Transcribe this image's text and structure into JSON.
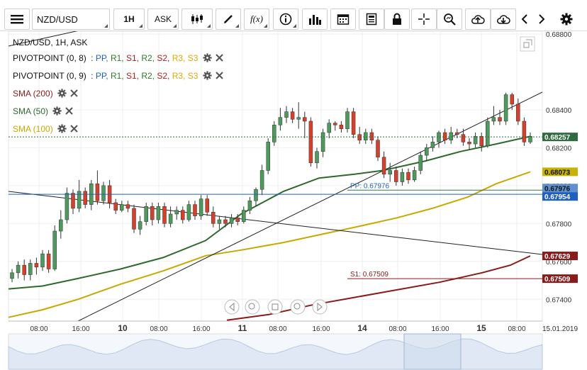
{
  "toolbar": {
    "symbol": "NZD/USD",
    "timeframe": "1H",
    "price_side": "ASK"
  },
  "header": {
    "title": "NZD/USD, 1H, ASK"
  },
  "legend": [
    {
      "label": "PIVOTPOINT (0, 8)",
      "levels": [
        "PP",
        "R1",
        "S1",
        "R2",
        "S2",
        "R3",
        "S3"
      ]
    },
    {
      "label": "PIVOTPOINT (0, 9)",
      "levels": [
        "PP",
        "R1",
        "S1",
        "R2",
        "S2",
        "R3",
        "S3"
      ]
    },
    {
      "label": "SMA (200)",
      "color": "#8b1a1a"
    },
    {
      "label": "SMA (50)",
      "color": "#2d6a2d"
    },
    {
      "label": "SMA (100)",
      "color": "#c9a800"
    }
  ],
  "level_colors": {
    "PP": "#1f5fbf",
    "R1": "#2d7a2d",
    "S1": "#b71c1c",
    "R2": "#2d7a2d",
    "S2": "#b71c1c",
    "R3": "#e0a800",
    "S3": "#e0a800"
  },
  "chart_data": {
    "type": "candlestick",
    "y_ticks": [
      0.688,
      0.684,
      0.682,
      0.68,
      0.678,
      0.676,
      0.674
    ],
    "y_tick_labels": [
      "0.68800",
      "0.68400",
      "0.68200",
      "0.68000",
      "0.67800",
      "0.67600",
      "0.67400"
    ],
    "ylim": [
      0.67285,
      0.68815
    ],
    "x_labels": [
      "08:00",
      "16:00",
      "10",
      "08:00",
      "16:00",
      "11",
      "08:00",
      "16:00",
      "14",
      "08:00",
      "16:00",
      "15",
      "08:00",
      "15.01.2019"
    ],
    "price_tags": [
      {
        "value": "0.68257",
        "price": 0.68257,
        "color": "#2e6b3e"
      },
      {
        "value": "0.68073",
        "price": 0.68073,
        "color": "#c9b300"
      },
      {
        "value": "0.67976",
        "price": 0.67976,
        "color": "#5e8fcf"
      },
      {
        "value": "0.67954",
        "price": 0.67954,
        "color": "#1f5fbf"
      },
      {
        "value": "0.67629",
        "price": 0.67629,
        "color": "#8b1a1a"
      },
      {
        "value": "0.67509",
        "price": 0.67509,
        "color": "#8b1a1a"
      }
    ],
    "level_labels": [
      {
        "text": "PP: 0.67976",
        "price": 0.67976,
        "color": "#1f5fbf"
      },
      {
        "text": "S1: 0.67509",
        "price": 0.67509,
        "color": "#8b1a1a"
      }
    ],
    "candles": [
      [
        0.6751,
        0.6754,
        0.6749,
        0.6756
      ],
      [
        0.6754,
        0.6758,
        0.6751,
        0.676
      ],
      [
        0.6758,
        0.6753,
        0.675,
        0.6761
      ],
      [
        0.6753,
        0.6759,
        0.675,
        0.6761
      ],
      [
        0.6759,
        0.6757,
        0.6753,
        0.6762
      ],
      [
        0.6757,
        0.6764,
        0.6755,
        0.6766
      ],
      [
        0.6764,
        0.6756,
        0.6754,
        0.6766
      ],
      [
        0.6756,
        0.6776,
        0.6755,
        0.6779
      ],
      [
        0.6776,
        0.6782,
        0.6772,
        0.6787
      ],
      [
        0.6782,
        0.6796,
        0.678,
        0.6799
      ],
      [
        0.6796,
        0.6788,
        0.6785,
        0.6798
      ],
      [
        0.6788,
        0.6797,
        0.6786,
        0.6803
      ],
      [
        0.6797,
        0.679,
        0.6788,
        0.6799
      ],
      [
        0.679,
        0.6801,
        0.6787,
        0.6803
      ],
      [
        0.6801,
        0.6792,
        0.679,
        0.6808
      ],
      [
        0.6792,
        0.68,
        0.679,
        0.6802
      ],
      [
        0.68,
        0.6791,
        0.6788,
        0.6803
      ],
      [
        0.6791,
        0.6787,
        0.6785,
        0.6793
      ],
      [
        0.6787,
        0.679,
        0.6786,
        0.6792
      ],
      [
        0.679,
        0.6788,
        0.6786,
        0.6792
      ],
      [
        0.6788,
        0.6777,
        0.6775,
        0.679
      ],
      [
        0.6777,
        0.6781,
        0.6774,
        0.6784
      ],
      [
        0.6781,
        0.6789,
        0.6779,
        0.6791
      ],
      [
        0.6789,
        0.6782,
        0.6779,
        0.6791
      ],
      [
        0.6782,
        0.6789,
        0.678,
        0.6791
      ],
      [
        0.6789,
        0.678,
        0.6778,
        0.6791
      ],
      [
        0.678,
        0.6785,
        0.6778,
        0.6789
      ],
      [
        0.6785,
        0.6787,
        0.6782,
        0.6789
      ],
      [
        0.6787,
        0.6782,
        0.678,
        0.6789
      ],
      [
        0.6782,
        0.679,
        0.6781,
        0.6792
      ],
      [
        0.679,
        0.6784,
        0.6782,
        0.6792
      ],
      [
        0.6784,
        0.6793,
        0.6782,
        0.6795
      ],
      [
        0.6793,
        0.6786,
        0.6784,
        0.6795
      ],
      [
        0.6786,
        0.678,
        0.6778,
        0.6789
      ],
      [
        0.678,
        0.6782,
        0.6777,
        0.6784
      ],
      [
        0.6782,
        0.678,
        0.6778,
        0.6784
      ],
      [
        0.678,
        0.6783,
        0.6778,
        0.6785
      ],
      [
        0.6783,
        0.6781,
        0.6779,
        0.6785
      ],
      [
        0.6781,
        0.6787,
        0.678,
        0.6789
      ],
      [
        0.6787,
        0.6792,
        0.6785,
        0.6794
      ],
      [
        0.6792,
        0.6798,
        0.6789,
        0.6799
      ],
      [
        0.6798,
        0.6808,
        0.6795,
        0.6811
      ],
      [
        0.6808,
        0.6823,
        0.6806,
        0.6825
      ],
      [
        0.6823,
        0.6832,
        0.6821,
        0.6834
      ],
      [
        0.6832,
        0.6836,
        0.6829,
        0.6841
      ],
      [
        0.6836,
        0.6839,
        0.6833,
        0.6842
      ],
      [
        0.6839,
        0.6835,
        0.6833,
        0.6841
      ],
      [
        0.6835,
        0.6836,
        0.683,
        0.6844
      ],
      [
        0.6836,
        0.6834,
        0.6825,
        0.6839
      ],
      [
        0.6834,
        0.6812,
        0.681,
        0.6836
      ],
      [
        0.6812,
        0.6818,
        0.6809,
        0.682
      ],
      [
        0.6818,
        0.6828,
        0.6815,
        0.683
      ],
      [
        0.6828,
        0.6833,
        0.6825,
        0.6835
      ],
      [
        0.6833,
        0.6832,
        0.6829,
        0.6834
      ],
      [
        0.6832,
        0.683,
        0.6828,
        0.6834
      ],
      [
        0.683,
        0.6839,
        0.6828,
        0.6841
      ],
      [
        0.6839,
        0.6827,
        0.6825,
        0.6841
      ],
      [
        0.6827,
        0.6824,
        0.6822,
        0.6831
      ],
      [
        0.6824,
        0.6828,
        0.6822,
        0.683
      ],
      [
        0.6828,
        0.6824,
        0.6822,
        0.683
      ],
      [
        0.6824,
        0.6815,
        0.6813,
        0.6826
      ],
      [
        0.6815,
        0.6806,
        0.6804,
        0.6818
      ],
      [
        0.6806,
        0.6808,
        0.6802,
        0.6812
      ],
      [
        0.6808,
        0.6802,
        0.68,
        0.681
      ],
      [
        0.6802,
        0.6807,
        0.68,
        0.6809
      ],
      [
        0.6807,
        0.6803,
        0.6801,
        0.6809
      ],
      [
        0.6803,
        0.6808,
        0.6802,
        0.681
      ],
      [
        0.6808,
        0.6816,
        0.6806,
        0.6818
      ],
      [
        0.6816,
        0.682,
        0.6813,
        0.6822
      ],
      [
        0.682,
        0.6823,
        0.6818,
        0.6826
      ],
      [
        0.6823,
        0.6828,
        0.682,
        0.6829
      ],
      [
        0.6828,
        0.6824,
        0.6822,
        0.683
      ],
      [
        0.6824,
        0.6828,
        0.6822,
        0.6831
      ],
      [
        0.6828,
        0.6827,
        0.6825,
        0.683
      ],
      [
        0.6827,
        0.6823,
        0.6821,
        0.683
      ],
      [
        0.6823,
        0.6822,
        0.6819,
        0.6825
      ],
      [
        0.6822,
        0.6826,
        0.682,
        0.6828
      ],
      [
        0.6826,
        0.6821,
        0.6818,
        0.6828
      ],
      [
        0.6821,
        0.6834,
        0.682,
        0.6836
      ],
      [
        0.6834,
        0.6836,
        0.6832,
        0.6842
      ],
      [
        0.6836,
        0.6834,
        0.6832,
        0.684
      ],
      [
        0.6834,
        0.6848,
        0.6832,
        0.6849
      ],
      [
        0.6848,
        0.6843,
        0.684,
        0.6849
      ],
      [
        0.6843,
        0.6834,
        0.6832,
        0.6846
      ],
      [
        0.6834,
        0.6823,
        0.6821,
        0.6836
      ],
      [
        0.6823,
        0.6826,
        0.6822,
        0.6828
      ]
    ]
  }
}
